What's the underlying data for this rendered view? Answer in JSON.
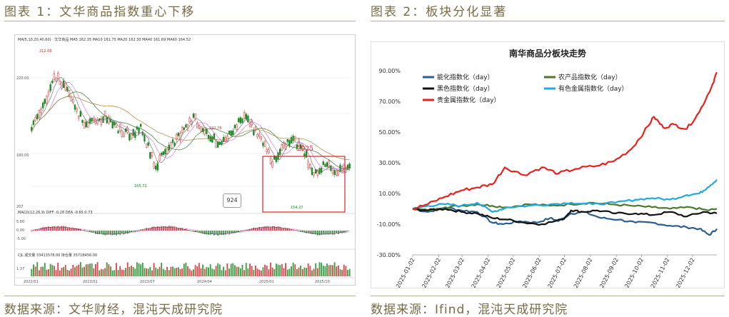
{
  "left_panel": {
    "title": "图表 1：文华商品指数重心下移",
    "source": "数据来源：文华财经，混沌天成研究院",
    "header_legend": "MA(5,10,20,40,60) · 文华商品  MA5 162.35  MA10 161.75  MA20 162.30  MA40 161.69  MA60 164.52",
    "macd_legend": "MACD(12,26,9)  DIFF -0.28  DEA -0.65  0.73",
    "vol_legend": "CJL  成交量 33413578.00  持仓量 3571B456.00",
    "peak_labels": [
      "212.08",
      "192.76",
      "165.72",
      "154.27"
    ],
    "annotation_year": "2025",
    "annotation_box_value": "924",
    "x_tick_labels": [
      "2022/01",
      "2023/01",
      "2023/07",
      "2024/04",
      "2025/01",
      "2025/10"
    ],
    "y_tick_labels": [
      "220.00",
      "180.00",
      "207"
    ],
    "macd_y_labels": [
      "5.00",
      "0.00",
      "-5.00"
    ],
    "vol_y_label": "1.37",
    "colors": {
      "up": "#d8262c",
      "down": "#1a8a22",
      "ma5": "#666666",
      "ma10": "#d26ad0",
      "ma20": "#2e7d32",
      "ma60": "#b08040",
      "box": "#d8262c"
    }
  },
  "right_panel": {
    "title": "图表 2：板块分化显著",
    "source": "数据来源：Ifind，混沌天成研究院",
    "chart_title": "南华商品分板块走势"
  },
  "chart_data": [
    {
      "type": "line",
      "title": "南华商品分板块走势",
      "xlabel": "",
      "ylabel": "",
      "ylim": [
        -30,
        90
      ],
      "y_ticks": [
        "-30.00%",
        "-10.00%",
        "10.00%",
        "30.00%",
        "50.00%",
        "70.00%",
        "90.00%"
      ],
      "x_tick_labels": [
        "2025-01-02",
        "2025-02-02",
        "2025-03-02",
        "2025-04-02",
        "2025-05-02",
        "2025-06-02",
        "2025-07-02",
        "2025-08-02",
        "2025-09-02",
        "2025-10-02",
        "2025-11-02",
        "2025-12-02"
      ],
      "legend_position": "top",
      "grid": false,
      "series": [
        {
          "name": "能化指数化（day）",
          "color": "#2b5f8e",
          "x": [
            "2025-01-02",
            "2025-01-20",
            "2025-02-10",
            "2025-03-01",
            "2025-03-20",
            "2025-04-07",
            "2025-04-20",
            "2025-05-10",
            "2025-05-30",
            "2025-06-15",
            "2025-06-25",
            "2025-07-10",
            "2025-07-25",
            "2025-08-15",
            "2025-09-05",
            "2025-09-25",
            "2025-10-15",
            "2025-11-05",
            "2025-11-25",
            "2025-12-10",
            "2025-12-22",
            "2025-12-31"
          ],
          "values": [
            0,
            -2,
            1,
            -1,
            -2,
            -9,
            -10,
            -8,
            -9,
            -6,
            -8,
            -3,
            -2,
            -6,
            -7,
            -9,
            -9,
            -11,
            -12,
            -13,
            -17,
            -13
          ]
        },
        {
          "name": "农产品指数化（day）",
          "color": "#4a7a2e",
          "x": [
            "2025-01-02",
            "2025-01-20",
            "2025-02-10",
            "2025-03-01",
            "2025-03-20",
            "2025-04-07",
            "2025-04-25",
            "2025-05-20",
            "2025-06-15",
            "2025-07-10",
            "2025-08-01",
            "2025-08-25",
            "2025-09-20",
            "2025-10-15",
            "2025-11-05",
            "2025-11-30",
            "2025-12-20",
            "2025-12-31"
          ],
          "values": [
            0,
            -1,
            1,
            2,
            3,
            2,
            1,
            3,
            2,
            3,
            4,
            3,
            2,
            1,
            0,
            1,
            -1,
            0
          ]
        },
        {
          "name": "黑色指数化（day）",
          "color": "#111111",
          "x": [
            "2025-01-02",
            "2025-01-20",
            "2025-02-10",
            "2025-03-01",
            "2025-03-20",
            "2025-04-07",
            "2025-04-25",
            "2025-05-15",
            "2025-06-05",
            "2025-06-30",
            "2025-07-10",
            "2025-07-25",
            "2025-08-10",
            "2025-09-01",
            "2025-09-25",
            "2025-10-15",
            "2025-11-05",
            "2025-11-25",
            "2025-12-15",
            "2025-12-31"
          ],
          "values": [
            0,
            -1,
            0,
            -2,
            -3,
            -6,
            -7,
            -9,
            -10,
            -7,
            -1,
            -2,
            -1,
            -3,
            -3,
            -4,
            -2,
            -5,
            -2,
            -3
          ]
        },
        {
          "name": "有色金属指数化（day）",
          "color": "#22aadd",
          "x": [
            "2025-01-02",
            "2025-01-20",
            "2025-02-10",
            "2025-03-01",
            "2025-03-20",
            "2025-04-07",
            "2025-04-25",
            "2025-05-20",
            "2025-06-15",
            "2025-07-10",
            "2025-08-05",
            "2025-09-01",
            "2025-09-25",
            "2025-10-15",
            "2025-11-05",
            "2025-11-25",
            "2025-12-10",
            "2025-12-20",
            "2025-12-31"
          ],
          "values": [
            0,
            2,
            3,
            2,
            4,
            -2,
            1,
            2,
            3,
            4,
            3,
            4,
            6,
            7,
            6,
            9,
            10,
            14,
            19
          ]
        },
        {
          "name": "贵金属指数化（day）",
          "color": "#e8211c",
          "x": [
            "2025-01-02",
            "2025-01-20",
            "2025-02-10",
            "2025-03-01",
            "2025-03-20",
            "2025-04-07",
            "2025-04-22",
            "2025-05-15",
            "2025-06-05",
            "2025-06-25",
            "2025-07-15",
            "2025-08-10",
            "2025-08-30",
            "2025-09-20",
            "2025-10-05",
            "2025-10-17",
            "2025-10-28",
            "2025-11-10",
            "2025-11-25",
            "2025-12-10",
            "2025-12-25",
            "2025-12-31"
          ],
          "values": [
            0,
            3,
            8,
            12,
            14,
            16,
            27,
            22,
            27,
            23,
            26,
            28,
            31,
            39,
            50,
            60,
            53,
            55,
            52,
            63,
            80,
            89
          ]
        }
      ]
    }
  ]
}
